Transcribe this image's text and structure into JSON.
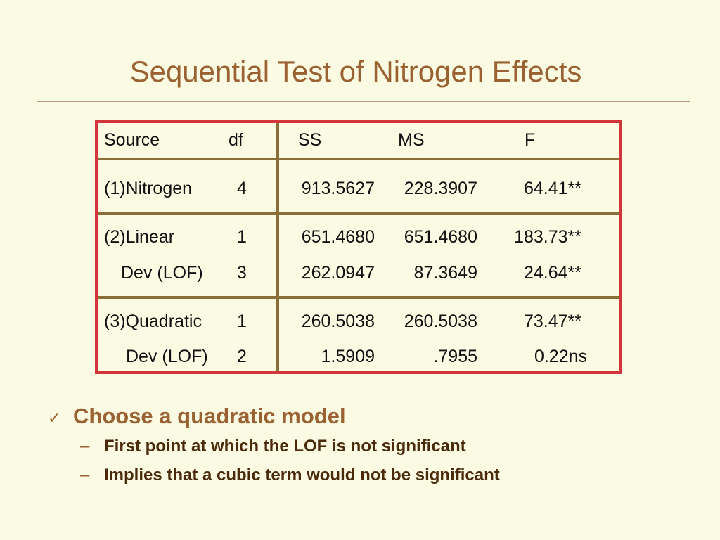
{
  "title": "Sequential Test of Nitrogen Effects",
  "table": {
    "headers": [
      "Source",
      "df",
      "SS",
      "MS",
      "F"
    ],
    "rows": [
      [
        "(1)Nitrogen",
        "4",
        "913.5627",
        "228.3907",
        "64.41**"
      ],
      [
        "(2)Linear",
        "1",
        "651.4680",
        "651.4680",
        "183.73**"
      ],
      [
        "Dev (LOF)",
        "3",
        "262.0947",
        "87.3649",
        "24.64**"
      ],
      [
        "(3)Quadratic",
        "1",
        "260.5038",
        "260.5038",
        "73.47**"
      ],
      [
        "Dev (LOF)",
        "2",
        "1.5909",
        ".7955",
        "0.22ns"
      ]
    ]
  },
  "bullets": {
    "main": "Choose a quadratic model",
    "subs": [
      "First point at which the LOF is not significant",
      "Implies that a cubic term would not be significant"
    ]
  },
  "colors": {
    "title": "#9a6232",
    "table_border": "#d2353b",
    "table_rules": "#8b6f38",
    "background": "#fbfbe3"
  },
  "icons": {
    "bullet_main": "check-mark-icon",
    "bullet_sub": "dash-icon"
  }
}
